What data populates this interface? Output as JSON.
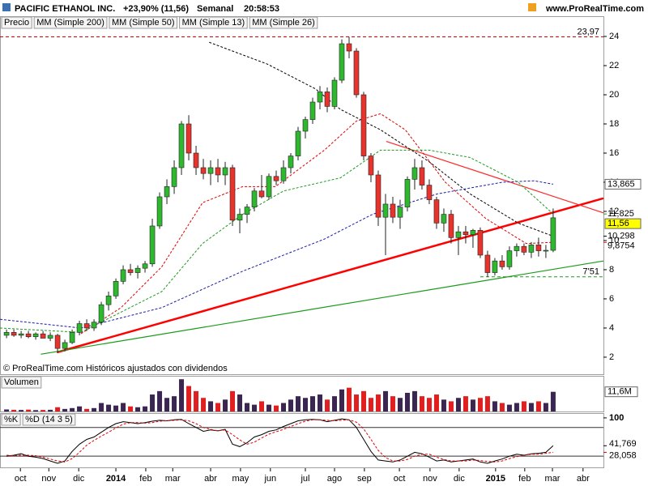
{
  "header": {
    "symbol": "PACIFIC ETHANOL INC.",
    "change": "+23,90% (11,56)",
    "period": "Semanal",
    "time": "20:58:53",
    "site": "www.ProRealTime.com"
  },
  "chart_data": [
    {
      "type": "candlestick",
      "price_name": "Precio",
      "open": [
        3.5,
        3.7,
        3.5,
        3.6,
        3.4,
        3.6,
        3.3,
        3.5,
        2.6,
        3.0,
        3.7,
        4.3,
        4.0,
        4.4,
        5.6,
        6.2,
        7.2,
        8.0,
        7.8,
        8.1,
        8.4,
        11.0,
        13.0,
        13.7,
        15.0,
        18.0,
        16.0,
        15.0,
        14.6,
        15.0,
        14.5,
        15.0,
        11.4,
        11.8,
        12.3,
        13.4,
        13.0,
        14.4,
        14.1,
        15.0,
        15.8,
        17.5,
        18.3,
        19.5,
        20.2,
        19.2,
        21.0,
        23.5,
        23.0,
        20.0,
        15.8,
        14.5,
        11.6,
        12.5,
        11.6,
        12.3,
        14.2,
        15.0,
        13.8,
        12.8,
        11.2,
        11.8,
        10.2,
        10.6,
        10.4,
        10.7,
        9.0,
        7.8,
        8.6,
        8.2,
        9.3,
        9.6,
        9.2,
        9.7,
        9.3,
        9.33
      ],
      "high": [
        3.9,
        3.9,
        3.8,
        3.8,
        3.7,
        3.8,
        3.7,
        3.6,
        3.2,
        3.9,
        4.5,
        4.6,
        4.6,
        5.8,
        6.5,
        7.4,
        8.3,
        8.4,
        8.3,
        8.6,
        11.5,
        13.3,
        14.2,
        15.5,
        18.2,
        18.6,
        16.5,
        15.6,
        15.5,
        15.6,
        15.4,
        15.2,
        12.2,
        12.5,
        13.6,
        14.5,
        14.6,
        14.8,
        15.5,
        16.0,
        17.8,
        18.5,
        19.8,
        20.6,
        20.5,
        21.2,
        23.8,
        23.97,
        23.2,
        20.2,
        16.0,
        14.8,
        13.2,
        13.0,
        12.8,
        14.4,
        15.6,
        15.5,
        14.2,
        13.0,
        12.2,
        12.1,
        11.0,
        11.0,
        10.8,
        10.9,
        9.3,
        8.8,
        9.0,
        9.6,
        9.8,
        9.8,
        9.9,
        10.2,
        9.7,
        12.2
      ],
      "low": [
        3.3,
        3.4,
        3.3,
        3.3,
        3.2,
        3.3,
        3.1,
        2.3,
        2.4,
        2.9,
        3.5,
        3.8,
        3.8,
        4.2,
        5.2,
        6.0,
        7.0,
        7.6,
        7.4,
        7.8,
        8.2,
        10.8,
        12.5,
        13.2,
        14.5,
        15.5,
        14.5,
        14.2,
        13.8,
        14.0,
        13.8,
        11.0,
        10.5,
        11.2,
        12.0,
        12.9,
        12.8,
        13.8,
        13.9,
        14.6,
        15.5,
        17.0,
        18.0,
        19.0,
        18.8,
        19.0,
        20.8,
        22.5,
        19.8,
        15.5,
        14.0,
        11.0,
        9.0,
        11.2,
        10.8,
        12.0,
        13.5,
        13.5,
        12.5,
        10.8,
        10.6,
        9.8,
        9.0,
        9.8,
        9.5,
        8.8,
        7.5,
        7.6,
        8.0,
        8.0,
        8.9,
        9.0,
        8.8,
        8.9,
        8.8,
        9.2
      ],
      "close": [
        3.7,
        3.5,
        3.6,
        3.4,
        3.6,
        3.3,
        3.5,
        2.6,
        3.0,
        3.7,
        4.3,
        4.0,
        4.4,
        5.6,
        6.2,
        7.2,
        8.0,
        7.8,
        8.1,
        8.4,
        11.0,
        13.0,
        13.7,
        15.0,
        18.0,
        16.0,
        15.0,
        14.6,
        15.0,
        14.5,
        15.0,
        11.4,
        11.8,
        12.3,
        13.4,
        13.0,
        14.4,
        14.1,
        15.0,
        15.8,
        17.5,
        18.3,
        19.5,
        20.2,
        19.2,
        21.0,
        23.5,
        23.0,
        20.0,
        15.8,
        14.5,
        11.6,
        12.5,
        11.6,
        12.3,
        14.2,
        15.0,
        13.8,
        12.8,
        11.2,
        11.8,
        10.2,
        10.6,
        10.4,
        10.7,
        9.0,
        7.8,
        8.6,
        8.2,
        9.3,
        9.6,
        9.2,
        9.7,
        9.3,
        9.33,
        11.56
      ],
      "up_color": "#2db82d",
      "down_color": "#e8322c",
      "xlim": [
        -0.9,
        81.9
      ],
      "xticks": [
        {
          "value": 1.9,
          "label": "oct"
        },
        {
          "value": 5.8,
          "label": "nov"
        },
        {
          "value": 9.9,
          "label": "dic"
        },
        {
          "value": 15,
          "label": "2014"
        },
        {
          "value": 19.1,
          "label": "feb"
        },
        {
          "value": 22.8,
          "label": "mar"
        },
        {
          "value": 28,
          "label": "abr"
        },
        {
          "value": 32.1,
          "label": "may"
        },
        {
          "value": 36.2,
          "label": "jun"
        },
        {
          "value": 41,
          "label": "jul"
        },
        {
          "value": 45,
          "label": "ago"
        },
        {
          "value": 49.1,
          "label": "sep"
        },
        {
          "value": 53.9,
          "label": "oct"
        },
        {
          "value": 58.1,
          "label": "nov"
        },
        {
          "value": 62.1,
          "label": "dic"
        },
        {
          "value": 67.1,
          "label": "2015"
        },
        {
          "value": 71.1,
          "label": "feb"
        },
        {
          "value": 74.9,
          "label": "mar"
        },
        {
          "value": 79.1,
          "label": "abr"
        }
      ],
      "ylim": [
        0.83,
        25.39
      ],
      "yticks": [
        2,
        4,
        6,
        8,
        10,
        12,
        14,
        16,
        18,
        20,
        22,
        24
      ],
      "series": [
        {
          "name": "MM (Simple 200)",
          "color": "#000000",
          "x": [
            27.8,
            35.8,
            42.4,
            45.8,
            51.3,
            58,
            63.6,
            70.2,
            75
          ],
          "values": [
            23.6,
            22.1,
            20.4,
            19,
            17.6,
            15.4,
            13.2,
            11.2,
            10.298
          ]
        },
        {
          "name": "MM (Simple 50)",
          "color": "#1a1aa8",
          "x": [
            -0.9,
            10.2,
            21.3,
            32.4,
            43.6,
            50.2,
            59.1,
            68,
            72.4,
            75
          ],
          "values": [
            4.6,
            4.0,
            5.4,
            7.9,
            10.1,
            11.8,
            13.2,
            14.0,
            14.1,
            13.865
          ]
        },
        {
          "name": "MM (Simple 13)",
          "color": "#e00000",
          "x": [
            10.2,
            15.7,
            21.3,
            26.9,
            32.4,
            36.9,
            43.6,
            48,
            51.3,
            54.7,
            60.2,
            65.8,
            71.3,
            75
          ],
          "values": [
            3.6,
            5.4,
            8.2,
            12.6,
            13.7,
            13.7,
            16.2,
            18.2,
            18.7,
            17.6,
            14,
            11.5,
            9.8,
            9.8754
          ]
        },
        {
          "name": "MM (Simple 26)",
          "color": "#1a9a1a",
          "x": [
            -0.9,
            10.2,
            21.3,
            26.9,
            32.4,
            38,
            45.8,
            51.3,
            58,
            63.6,
            70.2,
            75
          ],
          "values": [
            4.0,
            3.7,
            6.5,
            9.8,
            11.8,
            13.4,
            14.3,
            16.2,
            16.2,
            15.7,
            14,
            11.825
          ]
        }
      ],
      "trendlines": [
        {
          "color": "#ff0000",
          "style": "thick",
          "x": [
            6.9,
            81.9
          ],
          "values": [
            2.33,
            12.9
          ]
        },
        {
          "color": "#ff2a2a",
          "style": "thin",
          "x": [
            52.1,
            81.9
          ],
          "values": [
            16.8,
            11.9
          ]
        },
        {
          "color": "#1a9a1a",
          "style": "thin",
          "x": [
            4.7,
            81.9
          ],
          "values": [
            2.2,
            8.6
          ]
        }
      ],
      "hlines": [
        {
          "value": 23.97,
          "label": "23,97",
          "color": "#e00000",
          "from": -0.9
        },
        {
          "value": 7.51,
          "label": "7'51",
          "color": "#1a9a1a",
          "from": 65
        }
      ],
      "price_labels": [
        {
          "value": 13.865,
          "label": "13,865",
          "color": "#000000",
          "box": "#ffffff"
        },
        {
          "value": 11.825,
          "label": "11,825",
          "color": "#1a9a1a"
        },
        {
          "value": 11.56,
          "label": "11,56",
          "color": "#000000",
          "box": "#ffff00"
        },
        {
          "value": 10.298,
          "label": "10,298",
          "color": "#000000"
        },
        {
          "value": 9.8754,
          "label": "9,8754",
          "color": "#e00000"
        }
      ],
      "footnote": "© ProRealTime.com  Históricos ajustados con dividendos"
    },
    {
      "type": "bar",
      "name": "Volumen",
      "values": [
        1.2,
        1.0,
        0.9,
        1.1,
        0.8,
        0.9,
        1.0,
        2.5,
        1.5,
        2.0,
        3.0,
        1.5,
        2.0,
        5.0,
        4.0,
        3.5,
        5.0,
        3.0,
        2.5,
        3.0,
        10,
        12,
        8,
        9,
        19,
        15,
        12,
        8,
        6,
        5,
        7,
        12,
        10,
        5,
        4,
        6,
        4,
        3.5,
        5,
        7,
        9,
        8,
        9,
        10,
        7,
        9,
        13,
        14,
        10,
        12,
        8,
        10,
        12,
        9,
        8,
        11,
        12,
        9,
        8,
        10,
        7,
        6,
        8,
        9,
        7,
        8,
        9,
        6,
        5,
        4,
        5,
        6,
        5,
        6,
        5,
        11.6
      ],
      "up_color": "#3b2651",
      "down_color": "#e02020",
      "ylim": [
        0,
        21
      ],
      "value_label": {
        "value": 11.6,
        "label": "11,6M"
      }
    },
    {
      "type": "line",
      "series": [
        {
          "name": "%K",
          "color": "#000000",
          "values": [
            20,
            22,
            25,
            20,
            18,
            15,
            10,
            5,
            10,
            30,
            45,
            55,
            60,
            70,
            80,
            88,
            92,
            90,
            88,
            90,
            93,
            95,
            94,
            96,
            97,
            88,
            80,
            72,
            75,
            73,
            76,
            45,
            40,
            48,
            60,
            65,
            72,
            75,
            82,
            88,
            94,
            96,
            97,
            96,
            92,
            95,
            98,
            96,
            80,
            55,
            30,
            12,
            10,
            8,
            12,
            20,
            28,
            25,
            18,
            10,
            12,
            8,
            10,
            12,
            14,
            8,
            5,
            10,
            14,
            20,
            24,
            22,
            25,
            26,
            28,
            41.769
          ]
        },
        {
          "name": "%D (14 3 5)",
          "color": "#e00000",
          "values": [
            22,
            21,
            22,
            22,
            21,
            18,
            14,
            10,
            8,
            15,
            28,
            43,
            53,
            62,
            70,
            79,
            87,
            90,
            90,
            89,
            90,
            93,
            94,
            95,
            96,
            94,
            88,
            80,
            76,
            73,
            75,
            65,
            54,
            45,
            49,
            58,
            66,
            71,
            76,
            82,
            88,
            93,
            96,
            96,
            95,
            94,
            95,
            96,
            91,
            77,
            55,
            32,
            17,
            10,
            10,
            13,
            20,
            24,
            24,
            18,
            13,
            10,
            10,
            10,
            12,
            11,
            9,
            8,
            10,
            15,
            19,
            22,
            24,
            24,
            26,
            28.058
          ]
        }
      ],
      "ylim": [
        -3.4,
        110
      ],
      "yticks": [
        100
      ],
      "levels": [
        80,
        20
      ],
      "right_labels": [
        {
          "value": 41.769,
          "label": "41,769",
          "color": "#000000"
        },
        {
          "value": 28.058,
          "label": "28,058",
          "color": "#e00000"
        }
      ]
    }
  ]
}
